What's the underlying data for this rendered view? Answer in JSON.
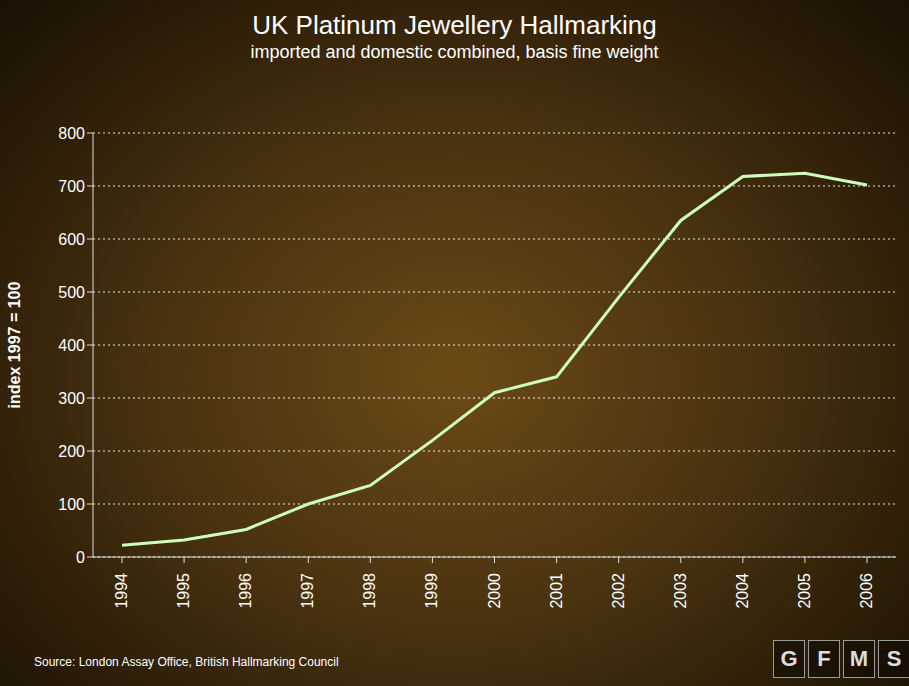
{
  "chart_data": {
    "type": "line",
    "title": "UK Platinum Jewellery Hallmarking",
    "subtitle": "imported and domestic combined, basis fine weight",
    "y_label": "index 1997 = 100",
    "source": "Source: London Assay Office, British Hallmarking Council",
    "logo": "GFMS",
    "categories": [
      "1994",
      "1995",
      "1996",
      "1997",
      "1998",
      "1999",
      "2000",
      "2001",
      "2002",
      "2003",
      "2004",
      "2005",
      "2006"
    ],
    "values": [
      22,
      32,
      52,
      100,
      135,
      220,
      310,
      340,
      490,
      635,
      718,
      724,
      702
    ],
    "color": "#ccffbb",
    "marker": "none",
    "ylim": [
      0,
      800
    ],
    "yticks": [
      0,
      100,
      200,
      300,
      400,
      500,
      600,
      700,
      800
    ],
    "grid": true
  }
}
